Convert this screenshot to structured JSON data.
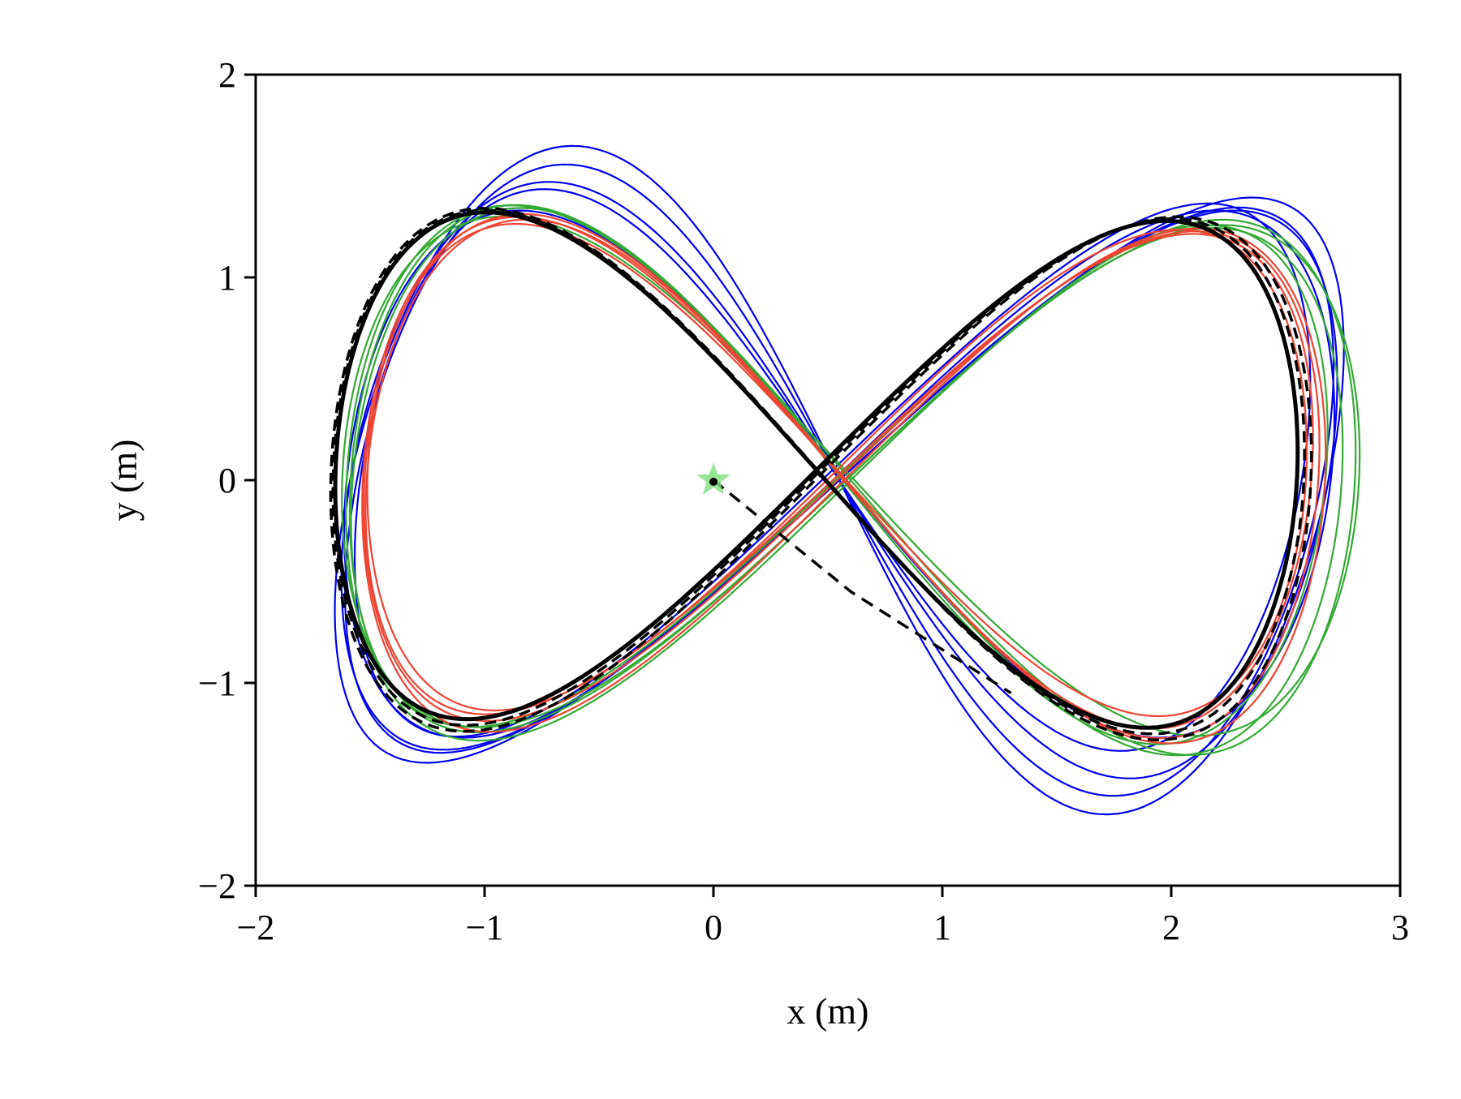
{
  "chart_data": {
    "type": "line",
    "title": "",
    "xlabel": "x (m)",
    "ylabel": "y (m)",
    "xlim": [
      -2,
      3
    ],
    "ylim": [
      -2,
      2
    ],
    "xticks": [
      -2,
      -1,
      0,
      1,
      2,
      3
    ],
    "yticks": [
      -2,
      -1,
      0,
      1,
      2
    ],
    "xtick_labels": [
      "−2",
      "−1",
      "0",
      "1",
      "2",
      "3"
    ],
    "ytick_labels": [
      "−2",
      "−1",
      "0",
      "1",
      "2"
    ],
    "grid": false,
    "legend": "none",
    "reference": {
      "style": "dashed",
      "color": "#000000",
      "center_x": 0.45,
      "center_y": 0.05,
      "half_width_x": 2.1,
      "half_height_y": 1.25,
      "approach": [
        [
          0,
          0
        ],
        [
          0.6,
          -0.55
        ],
        [
          1.3,
          -1.05
        ]
      ]
    },
    "start_marker": {
      "x": 0,
      "y": 0,
      "shape": "star",
      "color": "#80e080"
    },
    "series": [
      {
        "color": "#0000ee",
        "loops": [
          {
            "ax": 2.08,
            "ay": 1.45,
            "cx": 0.55,
            "cy": 0.0,
            "sx": 0.3,
            "sy": -0.15
          },
          {
            "ax": 2.1,
            "ay": 1.52,
            "cx": 0.55,
            "cy": 0.0,
            "sx": 0.35,
            "sy": -0.18
          },
          {
            "ax": 2.12,
            "ay": 1.4,
            "cx": 0.55,
            "cy": 0.0,
            "sx": 0.25,
            "sy": -0.1
          },
          {
            "ax": 2.05,
            "ay": 1.35,
            "cx": 0.52,
            "cy": 0.05,
            "sx": 0.2,
            "sy": -0.05
          },
          {
            "ax": 2.15,
            "ay": 1.3,
            "cx": 0.55,
            "cy": 0.03,
            "sx": 0.12,
            "sy": 0.0
          }
        ]
      },
      {
        "color": "#33aa33",
        "loops": [
          {
            "ax": 2.12,
            "ay": 1.28,
            "cx": 0.55,
            "cy": 0.02,
            "sx": 0.12,
            "sy": -0.06
          },
          {
            "ax": 2.16,
            "ay": 1.3,
            "cx": 0.58,
            "cy": 0.0,
            "sx": 0.1,
            "sy": -0.08
          },
          {
            "ax": 2.2,
            "ay": 1.32,
            "cx": 0.6,
            "cy": 0.0,
            "sx": 0.08,
            "sy": -0.05
          },
          {
            "ax": 2.22,
            "ay": 1.26,
            "cx": 0.6,
            "cy": 0.02,
            "sx": 0.06,
            "sy": -0.03
          }
        ]
      },
      {
        "color": "#ee4433",
        "loops": [
          {
            "ax": 2.06,
            "ay": 1.22,
            "cx": 0.55,
            "cy": 0.03,
            "sx": 0.1,
            "sy": -0.05
          },
          {
            "ax": 2.08,
            "ay": 1.25,
            "cx": 0.56,
            "cy": 0.02,
            "sx": 0.09,
            "sy": -0.06
          },
          {
            "ax": 2.1,
            "ay": 1.27,
            "cx": 0.57,
            "cy": 0.0,
            "sx": 0.07,
            "sy": -0.04
          },
          {
            "ax": 2.05,
            "ay": 1.2,
            "cx": 0.54,
            "cy": 0.05,
            "sx": 0.05,
            "sy": -0.02
          }
        ]
      }
    ]
  }
}
